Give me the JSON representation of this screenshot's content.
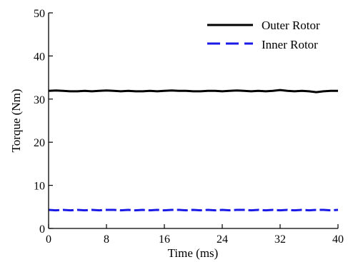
{
  "chart_data": {
    "type": "line",
    "xlabel": "Time (ms)",
    "ylabel": "Torque (Nm)",
    "xlim": [
      0,
      40
    ],
    "ylim": [
      0,
      50
    ],
    "xticks": [
      0,
      8,
      16,
      24,
      32,
      40
    ],
    "yticks": [
      0,
      10,
      20,
      30,
      40,
      50
    ],
    "grid": false,
    "legend_position": "top-right",
    "series": [
      {
        "name": "Outer Rotor",
        "color": "#000000",
        "dash": "solid",
        "x": [
          0,
          1,
          2,
          3,
          4,
          5,
          6,
          7,
          8,
          9,
          10,
          11,
          12,
          13,
          14,
          15,
          16,
          17,
          18,
          19,
          20,
          21,
          22,
          23,
          24,
          25,
          26,
          27,
          28,
          29,
          30,
          31,
          32,
          33,
          34,
          35,
          36,
          37,
          38,
          39,
          40
        ],
        "values": [
          31.9,
          32.0,
          31.9,
          31.8,
          31.8,
          31.9,
          31.8,
          31.9,
          32.0,
          31.9,
          31.8,
          31.9,
          31.8,
          31.8,
          31.9,
          31.8,
          31.9,
          32.0,
          31.9,
          31.9,
          31.8,
          31.8,
          31.9,
          31.9,
          31.8,
          31.9,
          32.0,
          31.9,
          31.8,
          31.9,
          31.8,
          31.9,
          32.1,
          31.9,
          31.8,
          31.9,
          31.8,
          31.6,
          31.8,
          31.9,
          31.9
        ]
      },
      {
        "name": "Inner Rotor",
        "color": "#1a1ae6",
        "dash": "dashed",
        "x": [
          0,
          1,
          2,
          3,
          4,
          5,
          6,
          7,
          8,
          9,
          10,
          11,
          12,
          13,
          14,
          15,
          16,
          17,
          18,
          19,
          20,
          21,
          22,
          23,
          24,
          25,
          26,
          27,
          28,
          29,
          30,
          31,
          32,
          33,
          34,
          35,
          36,
          37,
          38,
          39,
          40
        ],
        "values": [
          4.3,
          4.2,
          4.3,
          4.2,
          4.3,
          4.2,
          4.3,
          4.2,
          4.3,
          4.3,
          4.2,
          4.3,
          4.2,
          4.3,
          4.2,
          4.3,
          4.2,
          4.3,
          4.3,
          4.2,
          4.3,
          4.2,
          4.3,
          4.2,
          4.3,
          4.2,
          4.3,
          4.3,
          4.2,
          4.3,
          4.2,
          4.3,
          4.2,
          4.3,
          4.2,
          4.3,
          4.2,
          4.3,
          4.3,
          4.2,
          4.3
        ]
      }
    ]
  }
}
